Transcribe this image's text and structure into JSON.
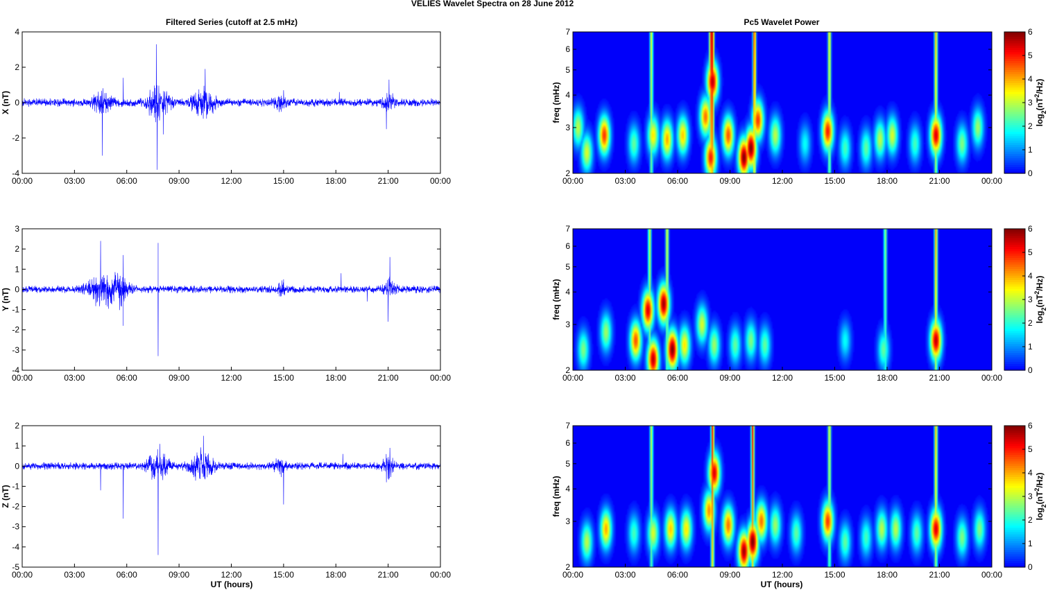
{
  "figure": {
    "title": "VELIES Wavelet Spectra on 28 June      2012",
    "left_title": "Filtered Series (cutoff at 2.5 mHz)",
    "right_title": "Pc5 Wavelet Power",
    "xlabel": "UT (hours)",
    "colorbar_label": "log2(nT^2/Hz)",
    "colors": {
      "trace": "#0000ff",
      "background": "#ffffff"
    }
  },
  "chart_data": [
    {
      "type": "line",
      "component": "X",
      "ylabel": "X (nT)",
      "xlim": [
        0,
        24
      ],
      "ylim": [
        -4,
        4
      ],
      "yticks": [
        -4,
        -2,
        0,
        2,
        4
      ],
      "xticks": [
        "00:00",
        "03:00",
        "06:00",
        "09:00",
        "12:00",
        "15:00",
        "18:00",
        "21:00",
        "00:00"
      ],
      "noise_amplitude": 0.25,
      "bursts": [
        {
          "t": 4.6,
          "w": 0.5,
          "a": 0.6
        },
        {
          "t": 7.8,
          "w": 0.6,
          "a": 1.0
        },
        {
          "t": 10.4,
          "w": 0.6,
          "a": 0.9
        },
        {
          "t": 14.8,
          "w": 0.3,
          "a": 0.5
        },
        {
          "t": 21.0,
          "w": 0.3,
          "a": 0.7
        }
      ],
      "spikes": [
        {
          "t": 4.6,
          "v": -3.0
        },
        {
          "t": 5.8,
          "v": 1.4
        },
        {
          "t": 7.7,
          "v": 3.3
        },
        {
          "t": 7.75,
          "v": -3.8
        },
        {
          "t": 8.1,
          "v": -1.8
        },
        {
          "t": 10.5,
          "v": 1.9
        },
        {
          "t": 15.0,
          "v": 0.7
        },
        {
          "t": 18.2,
          "v": 0.6
        },
        {
          "t": 20.9,
          "v": -1.5
        },
        {
          "t": 21.05,
          "v": 1.3
        }
      ]
    },
    {
      "type": "line",
      "component": "Y",
      "ylabel": "Y (nT)",
      "xlim": [
        0,
        24
      ],
      "ylim": [
        -4,
        3
      ],
      "yticks": [
        -4,
        -3,
        -2,
        -1,
        0,
        1,
        2,
        3
      ],
      "xticks": [
        "00:00",
        "03:00",
        "06:00",
        "09:00",
        "12:00",
        "15:00",
        "18:00",
        "21:00",
        "00:00"
      ],
      "noise_amplitude": 0.2,
      "bursts": [
        {
          "t": 4.6,
          "w": 0.8,
          "a": 0.9
        },
        {
          "t": 5.6,
          "w": 0.5,
          "a": 0.7
        },
        {
          "t": 14.9,
          "w": 0.2,
          "a": 0.4
        },
        {
          "t": 21.1,
          "w": 0.3,
          "a": 0.5
        }
      ],
      "spikes": [
        {
          "t": 4.5,
          "v": 2.4
        },
        {
          "t": 5.8,
          "v": -1.8
        },
        {
          "t": 5.8,
          "v": 1.7
        },
        {
          "t": 7.8,
          "v": 2.3
        },
        {
          "t": 7.8,
          "v": -3.3
        },
        {
          "t": 15.0,
          "v": 0.5
        },
        {
          "t": 18.3,
          "v": 0.8
        },
        {
          "t": 19.8,
          "v": -0.6
        },
        {
          "t": 21.0,
          "v": -1.6
        },
        {
          "t": 21.1,
          "v": 1.6
        }
      ]
    },
    {
      "type": "line",
      "component": "Z",
      "ylabel": "Z (nT)",
      "xlim": [
        0,
        24
      ],
      "ylim": [
        -5,
        2
      ],
      "yticks": [
        -5,
        -4,
        -3,
        -2,
        -1,
        0,
        1,
        2
      ],
      "xticks": [
        "00:00",
        "03:00",
        "06:00",
        "09:00",
        "12:00",
        "15:00",
        "18:00",
        "21:00",
        "00:00"
      ],
      "noise_amplitude": 0.2,
      "bursts": [
        {
          "t": 7.8,
          "w": 0.6,
          "a": 0.7
        },
        {
          "t": 10.3,
          "w": 0.6,
          "a": 0.8
        },
        {
          "t": 14.8,
          "w": 0.3,
          "a": 0.4
        },
        {
          "t": 21.0,
          "w": 0.3,
          "a": 0.5
        }
      ],
      "spikes": [
        {
          "t": 4.5,
          "v": -1.2
        },
        {
          "t": 5.8,
          "v": -2.6
        },
        {
          "t": 7.8,
          "v": -4.4
        },
        {
          "t": 7.9,
          "v": 1.1
        },
        {
          "t": 10.4,
          "v": 1.5
        },
        {
          "t": 15.0,
          "v": -1.9
        },
        {
          "t": 18.4,
          "v": 0.6
        },
        {
          "t": 20.9,
          "v": -0.8
        },
        {
          "t": 21.1,
          "v": 0.9
        }
      ]
    },
    {
      "type": "heatmap",
      "component": "X",
      "ylabel": "freq (mHz)",
      "xlim": [
        0,
        24
      ],
      "ylim": [
        2,
        7
      ],
      "yscale": "log",
      "yticks": [
        2,
        3,
        4,
        5,
        6,
        7
      ],
      "xticks": [
        "00:00",
        "03:00",
        "06:00",
        "09:00",
        "12:00",
        "15:00",
        "18:00",
        "21:00",
        "00:00"
      ],
      "colormap": "jet",
      "clim": [
        0,
        6
      ],
      "colorbar_ticks": [
        0,
        1,
        2,
        3,
        4,
        5,
        6
      ],
      "blobs": [
        {
          "t": 0.3,
          "f": 3.0,
          "p": 3.0
        },
        {
          "t": 0.8,
          "f": 2.4,
          "p": 3.2
        },
        {
          "t": 1.8,
          "f": 2.8,
          "p": 4.8
        },
        {
          "t": 3.5,
          "f": 2.6,
          "p": 2.4
        },
        {
          "t": 4.6,
          "f": 2.8,
          "p": 3.6
        },
        {
          "t": 5.4,
          "f": 2.7,
          "p": 4.0
        },
        {
          "t": 6.3,
          "f": 2.8,
          "p": 3.8
        },
        {
          "t": 7.6,
          "f": 3.3,
          "p": 4.4
        },
        {
          "t": 7.9,
          "f": 2.3,
          "p": 5.0
        },
        {
          "t": 8.0,
          "f": 4.5,
          "p": 5.6
        },
        {
          "t": 8.9,
          "f": 2.8,
          "p": 4.6
        },
        {
          "t": 9.8,
          "f": 2.3,
          "p": 6.0
        },
        {
          "t": 10.2,
          "f": 2.5,
          "p": 6.0
        },
        {
          "t": 10.6,
          "f": 3.2,
          "p": 4.8
        },
        {
          "t": 11.6,
          "f": 2.8,
          "p": 3.0
        },
        {
          "t": 13.3,
          "f": 2.6,
          "p": 1.8
        },
        {
          "t": 14.6,
          "f": 2.9,
          "p": 5.0
        },
        {
          "t": 15.6,
          "f": 2.5,
          "p": 2.2
        },
        {
          "t": 16.8,
          "f": 2.5,
          "p": 2.4
        },
        {
          "t": 17.6,
          "f": 2.7,
          "p": 3.0
        },
        {
          "t": 18.3,
          "f": 2.8,
          "p": 3.2
        },
        {
          "t": 19.6,
          "f": 2.6,
          "p": 2.2
        },
        {
          "t": 20.8,
          "f": 2.8,
          "p": 5.4
        },
        {
          "t": 22.3,
          "f": 2.6,
          "p": 2.6
        },
        {
          "t": 23.2,
          "f": 3.0,
          "p": 2.8
        }
      ],
      "streaks": [
        {
          "t": 4.5,
          "p": 3.4
        },
        {
          "t": 7.9,
          "p": 5.0
        },
        {
          "t": 8.0,
          "p": 5.6
        },
        {
          "t": 10.4,
          "p": 5.0
        },
        {
          "t": 14.7,
          "p": 3.6
        },
        {
          "t": 20.8,
          "p": 4.0
        }
      ]
    },
    {
      "type": "heatmap",
      "component": "Y",
      "ylabel": "freq (mHz)",
      "xlim": [
        0,
        24
      ],
      "ylim": [
        2,
        7
      ],
      "yscale": "log",
      "yticks": [
        2,
        3,
        4,
        5,
        6,
        7
      ],
      "xticks": [
        "00:00",
        "03:00",
        "06:00",
        "09:00",
        "12:00",
        "15:00",
        "18:00",
        "21:00",
        "00:00"
      ],
      "colormap": "jet",
      "clim": [
        0,
        6
      ],
      "colorbar_ticks": [
        0,
        1,
        2,
        3,
        4,
        5,
        6
      ],
      "blobs": [
        {
          "t": 0.6,
          "f": 2.4,
          "p": 2.6
        },
        {
          "t": 1.9,
          "f": 2.8,
          "p": 2.8
        },
        {
          "t": 3.6,
          "f": 2.6,
          "p": 4.6
        },
        {
          "t": 4.3,
          "f": 3.4,
          "p": 5.4
        },
        {
          "t": 4.6,
          "f": 2.2,
          "p": 5.6
        },
        {
          "t": 5.2,
          "f": 3.6,
          "p": 5.8
        },
        {
          "t": 5.7,
          "f": 2.4,
          "p": 6.0
        },
        {
          "t": 6.4,
          "f": 2.5,
          "p": 3.6
        },
        {
          "t": 7.4,
          "f": 3.0,
          "p": 3.2
        },
        {
          "t": 8.1,
          "f": 2.5,
          "p": 2.8
        },
        {
          "t": 9.3,
          "f": 2.5,
          "p": 2.4
        },
        {
          "t": 10.2,
          "f": 2.6,
          "p": 2.6
        },
        {
          "t": 11.0,
          "f": 2.5,
          "p": 2.4
        },
        {
          "t": 15.6,
          "f": 2.6,
          "p": 1.8
        },
        {
          "t": 17.8,
          "f": 2.4,
          "p": 2.4
        },
        {
          "t": 20.8,
          "f": 2.6,
          "p": 5.6
        }
      ],
      "streaks": [
        {
          "t": 4.4,
          "p": 3.2
        },
        {
          "t": 5.4,
          "p": 3.4
        },
        {
          "t": 17.9,
          "p": 2.8
        },
        {
          "t": 20.8,
          "p": 4.2
        }
      ]
    },
    {
      "type": "heatmap",
      "component": "Z",
      "ylabel": "freq (mHz)",
      "xlim": [
        0,
        24
      ],
      "ylim": [
        2,
        7
      ],
      "yscale": "log",
      "yticks": [
        2,
        3,
        4,
        5,
        6,
        7
      ],
      "xticks": [
        "00:00",
        "03:00",
        "06:00",
        "09:00",
        "12:00",
        "15:00",
        "18:00",
        "21:00",
        "00:00"
      ],
      "colormap": "jet",
      "clim": [
        0,
        6
      ],
      "colorbar_ticks": [
        0,
        1,
        2,
        3,
        4,
        5,
        6
      ],
      "blobs": [
        {
          "t": 0.8,
          "f": 2.5,
          "p": 3.0
        },
        {
          "t": 1.9,
          "f": 2.8,
          "p": 4.0
        },
        {
          "t": 3.5,
          "f": 2.7,
          "p": 2.2
        },
        {
          "t": 4.6,
          "f": 2.7,
          "p": 3.2
        },
        {
          "t": 5.6,
          "f": 2.8,
          "p": 3.8
        },
        {
          "t": 6.5,
          "f": 2.8,
          "p": 3.6
        },
        {
          "t": 7.8,
          "f": 3.3,
          "p": 4.2
        },
        {
          "t": 8.1,
          "f": 4.6,
          "p": 5.4
        },
        {
          "t": 8.9,
          "f": 2.9,
          "p": 4.4
        },
        {
          "t": 9.8,
          "f": 2.3,
          "p": 5.8
        },
        {
          "t": 10.3,
          "f": 2.5,
          "p": 6.0
        },
        {
          "t": 10.8,
          "f": 3.0,
          "p": 4.4
        },
        {
          "t": 11.6,
          "f": 2.9,
          "p": 2.8
        },
        {
          "t": 12.8,
          "f": 2.7,
          "p": 2.4
        },
        {
          "t": 14.6,
          "f": 3.0,
          "p": 4.8
        },
        {
          "t": 15.6,
          "f": 2.5,
          "p": 2.4
        },
        {
          "t": 16.8,
          "f": 2.6,
          "p": 2.2
        },
        {
          "t": 17.7,
          "f": 2.8,
          "p": 3.0
        },
        {
          "t": 18.5,
          "f": 2.8,
          "p": 3.0
        },
        {
          "t": 19.7,
          "f": 2.7,
          "p": 2.4
        },
        {
          "t": 20.8,
          "f": 2.8,
          "p": 5.4
        },
        {
          "t": 22.3,
          "f": 2.6,
          "p": 2.6
        },
        {
          "t": 23.3,
          "f": 2.8,
          "p": 2.6
        }
      ],
      "streaks": [
        {
          "t": 4.5,
          "p": 3.2
        },
        {
          "t": 8.0,
          "p": 5.2
        },
        {
          "t": 10.3,
          "p": 5.2
        },
        {
          "t": 14.7,
          "p": 3.4
        },
        {
          "t": 20.8,
          "p": 4.0
        }
      ]
    }
  ]
}
